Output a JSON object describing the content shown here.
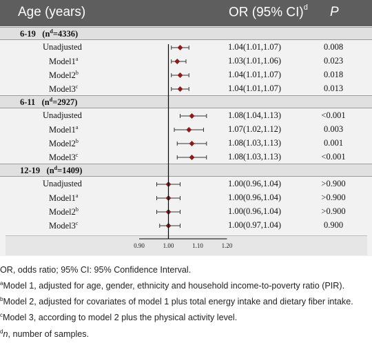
{
  "header": {
    "col1": "Age (years)",
    "col2": "OR (95% CI)",
    "col2_sup": "d",
    "col3": "P"
  },
  "chart_data": {
    "type": "forest",
    "x_ticks": [
      "0.90",
      "1.00",
      "1.10",
      "1.20"
    ],
    "xlim": [
      0.9,
      1.2
    ],
    "reference_line": 1.0,
    "groups": [
      {
        "label": "6-19",
        "n_label": "=4336)",
        "rows": [
          {
            "name": "Unadjusted",
            "sup": "",
            "or": 1.04,
            "lo": 1.01,
            "hi": 1.07,
            "text": "1.04(1.01,1.07)",
            "p": "0.008"
          },
          {
            "name": "Model1",
            "sup": "a",
            "or": 1.03,
            "lo": 1.01,
            "hi": 1.06,
            "text": "1.03(1.01,1.06)",
            "p": "0.023"
          },
          {
            "name": "Model2",
            "sup": "b",
            "or": 1.04,
            "lo": 1.01,
            "hi": 1.07,
            "text": "1.04(1.01,1.07)",
            "p": "0.018"
          },
          {
            "name": "Model3",
            "sup": "c",
            "or": 1.04,
            "lo": 1.01,
            "hi": 1.07,
            "text": "1.04(1.01,1.07)",
            "p": "0.013"
          }
        ]
      },
      {
        "label": "6-11",
        "n_label": "=2927)",
        "rows": [
          {
            "name": "Unadjusted",
            "sup": "",
            "or": 1.08,
            "lo": 1.04,
            "hi": 1.13,
            "text": "1.08(1.04,1.13)",
            "p": "<0.001"
          },
          {
            "name": "Model1",
            "sup": "a",
            "or": 1.07,
            "lo": 1.02,
            "hi": 1.12,
            "text": "1.07(1.02,1.12)",
            "p": "0.003"
          },
          {
            "name": "Model2",
            "sup": "b",
            "or": 1.08,
            "lo": 1.03,
            "hi": 1.13,
            "text": "1.08(1.03,1.13)",
            "p": "0.001"
          },
          {
            "name": "Model3",
            "sup": "c",
            "or": 1.08,
            "lo": 1.03,
            "hi": 1.13,
            "text": "1.08(1.03,1.13)",
            "p": "<0.001"
          }
        ]
      },
      {
        "label": "12-19",
        "n_label": "=1409)",
        "rows": [
          {
            "name": "Unadjusted",
            "sup": "",
            "or": 1.0,
            "lo": 0.96,
            "hi": 1.04,
            "text": "1.00(0.96,1.04)",
            "p": ">0.900"
          },
          {
            "name": "Model1",
            "sup": "a",
            "or": 1.0,
            "lo": 0.96,
            "hi": 1.04,
            "text": "1.00(0.96,1.04)",
            "p": ">0.900"
          },
          {
            "name": "Model2",
            "sup": "b",
            "or": 1.0,
            "lo": 0.96,
            "hi": 1.04,
            "text": "1.00(0.96,1.04)",
            "p": ">0.900"
          },
          {
            "name": "Model3",
            "sup": "c",
            "or": 1.0,
            "lo": 0.97,
            "hi": 1.04,
            "text": "1.00(0.97,1.04)",
            "p": "0.900"
          }
        ]
      }
    ]
  },
  "colors": {
    "header_bg": "#5e5e5e",
    "marker": "#8b1a1a"
  },
  "footnotes": {
    "or_line": "OR, odds ratio; 95% CI: 95% Confidence Interval.",
    "a_sup": "a",
    "a_text": "Model 1, adjusted for age, gender, ethnicity and household income-to-poverty ratio (PIR).",
    "b_sup": "b",
    "b_text": "Model 2, adjusted for covariates of model 1 plus total energy intake and dietary fiber intake.",
    "c_sup": "c",
    "c_text": "Model 3, according to model 2 plus the physical activity level.",
    "d_sup": "d",
    "d_italic": "n",
    "d_text": ", number of samples."
  }
}
